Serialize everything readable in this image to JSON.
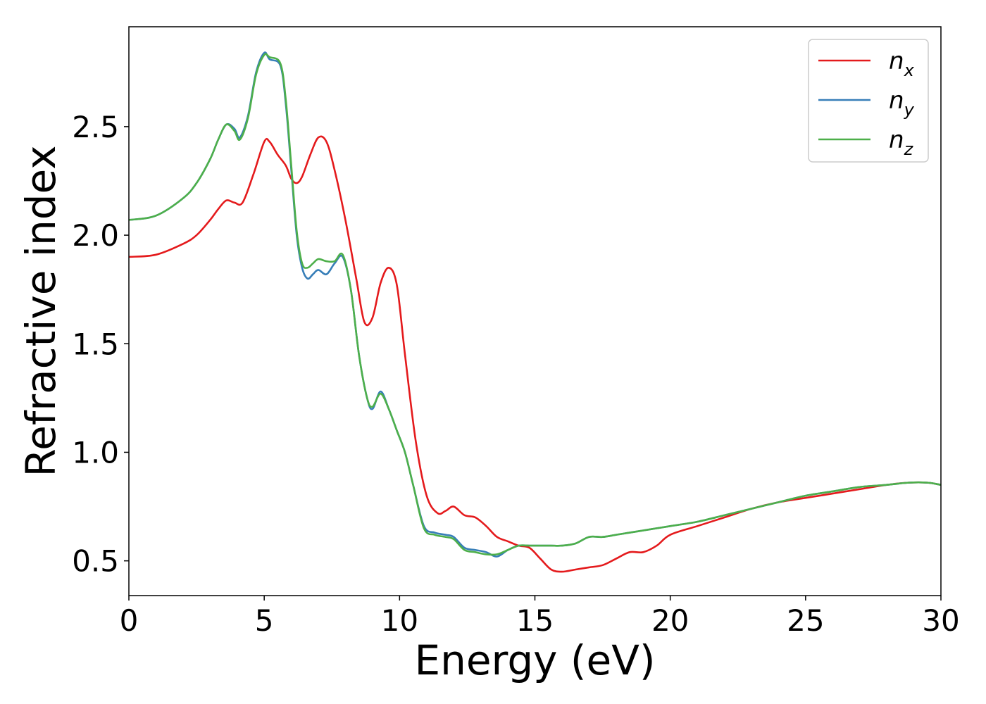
{
  "chart_data": {
    "type": "line",
    "title": "",
    "xlabel": "Energy (eV)",
    "ylabel": "Refractive index",
    "xlim": [
      0,
      30
    ],
    "ylim": [
      0.34,
      2.96
    ],
    "xticks": [
      0,
      5,
      10,
      15,
      20,
      25,
      30
    ],
    "xtick_labels": [
      "0",
      "5",
      "10",
      "15",
      "20",
      "25",
      "30"
    ],
    "yticks": [
      0.5,
      1.0,
      1.5,
      2.0,
      2.5
    ],
    "ytick_labels": [
      "0.5",
      "1.0",
      "1.5",
      "2.0",
      "2.5"
    ],
    "grid": false,
    "legend_position": "top-right",
    "series": [
      {
        "name": "n_x",
        "label_base": "n",
        "label_sub": "x",
        "color": "#e41a1c",
        "x": [
          0,
          1,
          2,
          2.5,
          3,
          3.3,
          3.6,
          3.9,
          4.2,
          4.6,
          5.0,
          5.2,
          5.5,
          5.8,
          6.0,
          6.2,
          6.4,
          6.7,
          7.0,
          7.3,
          7.6,
          8.0,
          8.4,
          8.7,
          9.0,
          9.3,
          9.6,
          9.9,
          10.2,
          10.6,
          11.0,
          11.4,
          11.7,
          12.0,
          12.4,
          12.8,
          13.2,
          13.6,
          14.0,
          14.4,
          14.8,
          15.2,
          15.6,
          16.0,
          16.5,
          17.0,
          17.5,
          18.0,
          18.5,
          19.0,
          19.5,
          20.0,
          21.0,
          22.0,
          23.0,
          24.0,
          25.0,
          26.0,
          27.0,
          28.0,
          28.8,
          29.5,
          30.0
        ],
        "y": [
          1.9,
          1.91,
          1.96,
          2.0,
          2.07,
          2.12,
          2.16,
          2.15,
          2.15,
          2.28,
          2.43,
          2.43,
          2.37,
          2.32,
          2.26,
          2.24,
          2.27,
          2.37,
          2.45,
          2.43,
          2.3,
          2.07,
          1.8,
          1.6,
          1.62,
          1.78,
          1.85,
          1.77,
          1.45,
          1.05,
          0.8,
          0.72,
          0.73,
          0.75,
          0.71,
          0.7,
          0.66,
          0.61,
          0.59,
          0.57,
          0.56,
          0.51,
          0.46,
          0.45,
          0.46,
          0.47,
          0.48,
          0.51,
          0.54,
          0.54,
          0.57,
          0.62,
          0.66,
          0.7,
          0.74,
          0.77,
          0.79,
          0.81,
          0.83,
          0.85,
          0.86,
          0.86,
          0.85
        ]
      },
      {
        "name": "n_y",
        "label_base": "n",
        "label_sub": "y",
        "color": "#377eb8",
        "x": [
          0,
          1,
          2,
          2.5,
          3,
          3.3,
          3.6,
          3.9,
          4.1,
          4.4,
          4.7,
          5.0,
          5.2,
          5.6,
          5.8,
          6.0,
          6.2,
          6.4,
          6.6,
          6.8,
          7.0,
          7.3,
          7.6,
          7.9,
          8.2,
          8.5,
          8.8,
          9.0,
          9.3,
          9.6,
          9.9,
          10.2,
          10.5,
          10.9,
          11.3,
          11.7,
          12.0,
          12.4,
          12.8,
          13.2,
          13.6,
          14.0,
          14.4,
          14.8,
          15.2,
          15.6,
          16.0,
          16.5,
          17.0,
          17.5,
          18.0,
          18.5,
          19.0,
          19.5,
          20.0,
          21.0,
          22.0,
          23.0,
          24.0,
          25.0,
          26.0,
          27.0,
          28.0,
          28.8,
          29.5,
          30.0
        ],
        "y": [
          2.07,
          2.09,
          2.17,
          2.24,
          2.35,
          2.44,
          2.51,
          2.49,
          2.45,
          2.55,
          2.75,
          2.84,
          2.81,
          2.78,
          2.6,
          2.3,
          2.0,
          1.85,
          1.8,
          1.82,
          1.84,
          1.82,
          1.87,
          1.9,
          1.75,
          1.45,
          1.25,
          1.2,
          1.28,
          1.2,
          1.1,
          1.0,
          0.85,
          0.66,
          0.63,
          0.62,
          0.61,
          0.56,
          0.55,
          0.54,
          0.52,
          0.55,
          0.57,
          0.57,
          0.57,
          0.57,
          0.57,
          0.58,
          0.61,
          0.61,
          0.62,
          0.63,
          0.64,
          0.65,
          0.66,
          0.68,
          0.71,
          0.74,
          0.77,
          0.8,
          0.82,
          0.84,
          0.85,
          0.86,
          0.86,
          0.85
        ]
      },
      {
        "name": "n_z",
        "label_base": "n",
        "label_sub": "z",
        "color": "#4daf4a",
        "x": [
          0,
          1,
          2,
          2.5,
          3,
          3.3,
          3.6,
          3.9,
          4.1,
          4.4,
          4.7,
          5.0,
          5.2,
          5.6,
          5.8,
          6.0,
          6.2,
          6.4,
          6.6,
          6.8,
          7.0,
          7.3,
          7.6,
          7.9,
          8.2,
          8.5,
          8.8,
          9.0,
          9.3,
          9.6,
          9.9,
          10.2,
          10.5,
          10.9,
          11.3,
          11.7,
          12.0,
          12.4,
          12.8,
          13.2,
          13.6,
          14.0,
          14.4,
          14.8,
          15.2,
          15.6,
          16.0,
          16.5,
          17.0,
          17.5,
          18.0,
          18.5,
          19.0,
          19.5,
          20.0,
          21.0,
          22.0,
          23.0,
          24.0,
          25.0,
          26.0,
          27.0,
          28.0,
          28.8,
          29.5,
          30.0
        ],
        "y": [
          2.07,
          2.09,
          2.17,
          2.24,
          2.35,
          2.44,
          2.51,
          2.48,
          2.44,
          2.54,
          2.74,
          2.83,
          2.82,
          2.79,
          2.62,
          2.32,
          2.02,
          1.87,
          1.85,
          1.87,
          1.89,
          1.88,
          1.88,
          1.91,
          1.75,
          1.45,
          1.25,
          1.21,
          1.27,
          1.2,
          1.1,
          1.0,
          0.85,
          0.65,
          0.62,
          0.61,
          0.6,
          0.55,
          0.54,
          0.53,
          0.53,
          0.55,
          0.57,
          0.57,
          0.57,
          0.57,
          0.57,
          0.58,
          0.61,
          0.61,
          0.62,
          0.63,
          0.64,
          0.65,
          0.66,
          0.68,
          0.71,
          0.74,
          0.77,
          0.8,
          0.82,
          0.84,
          0.85,
          0.86,
          0.86,
          0.85
        ]
      }
    ]
  }
}
